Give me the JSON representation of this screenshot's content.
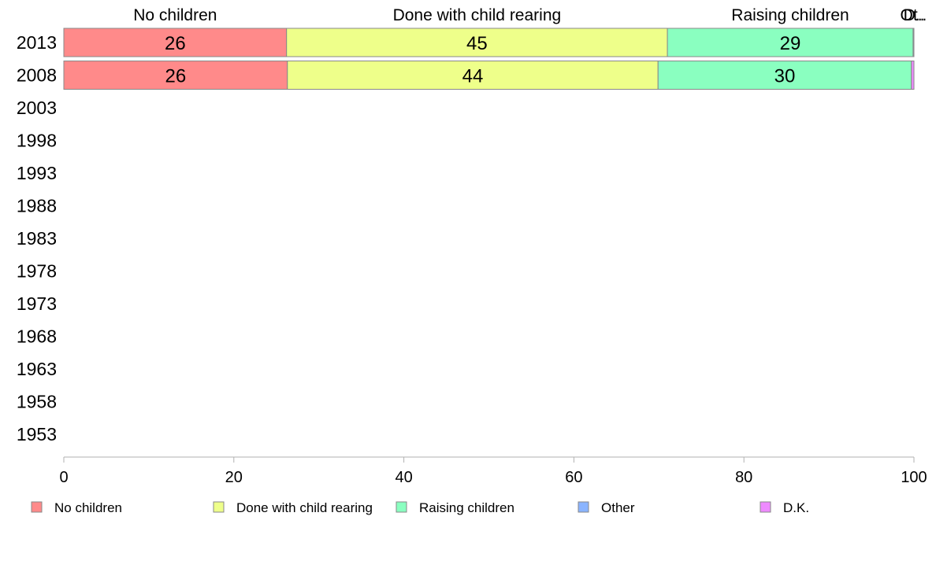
{
  "chart_data": {
    "type": "bar",
    "orientation": "horizontal",
    "stacked": true,
    "categories": [
      "2013",
      "2008",
      "2003",
      "1998",
      "1993",
      "1988",
      "1983",
      "1978",
      "1973",
      "1968",
      "1963",
      "1958",
      "1953"
    ],
    "series": [
      {
        "name": "No children",
        "values": [
          26.2,
          26.3,
          null,
          null,
          null,
          null,
          null,
          null,
          null,
          null,
          null,
          null,
          null
        ],
        "labels": [
          "26",
          "26",
          "",
          "",
          "",
          "",
          "",
          "",
          "",
          "",
          "",
          "",
          ""
        ],
        "color": "#ff8a8a"
      },
      {
        "name": "Done with child rearing",
        "values": [
          44.8,
          43.6,
          null,
          null,
          null,
          null,
          null,
          null,
          null,
          null,
          null,
          null,
          null
        ],
        "labels": [
          "45",
          "44",
          "",
          "",
          "",
          "",
          "",
          "",
          "",
          "",
          "",
          "",
          ""
        ],
        "color": "#eeff8a"
      },
      {
        "name": "Raising children",
        "values": [
          28.9,
          29.8,
          null,
          null,
          null,
          null,
          null,
          null,
          null,
          null,
          null,
          null,
          null
        ],
        "labels": [
          "29",
          "30",
          "",
          "",
          "",
          "",
          "",
          "",
          "",
          "",
          "",
          "",
          ""
        ],
        "color": "#8affc0"
      },
      {
        "name": "Other",
        "values": [
          0.1,
          0.0,
          null,
          null,
          null,
          null,
          null,
          null,
          null,
          null,
          null,
          null,
          null
        ],
        "labels": [
          "",
          "",
          "",
          "",
          "",
          "",
          "",
          "",
          "",
          "",
          "",
          "",
          ""
        ],
        "color": "#8ab4ff"
      },
      {
        "name": "D.K.",
        "values": [
          0.0,
          0.3,
          null,
          null,
          null,
          null,
          null,
          null,
          null,
          null,
          null,
          null,
          null
        ],
        "labels": [
          "",
          "",
          "",
          "",
          "",
          "",
          "",
          "",
          "",
          "",
          "",
          "",
          ""
        ],
        "color": "#ee8aff"
      }
    ],
    "top_labels": [
      "No children",
      "Done with child rearing",
      "Raising children",
      "Ot..",
      "D.."
    ],
    "x_ticks": [
      "0",
      "20",
      "40",
      "60",
      "80",
      "100"
    ],
    "xlim": [
      0,
      100
    ],
    "grid": false,
    "legend_position": "bottom"
  }
}
